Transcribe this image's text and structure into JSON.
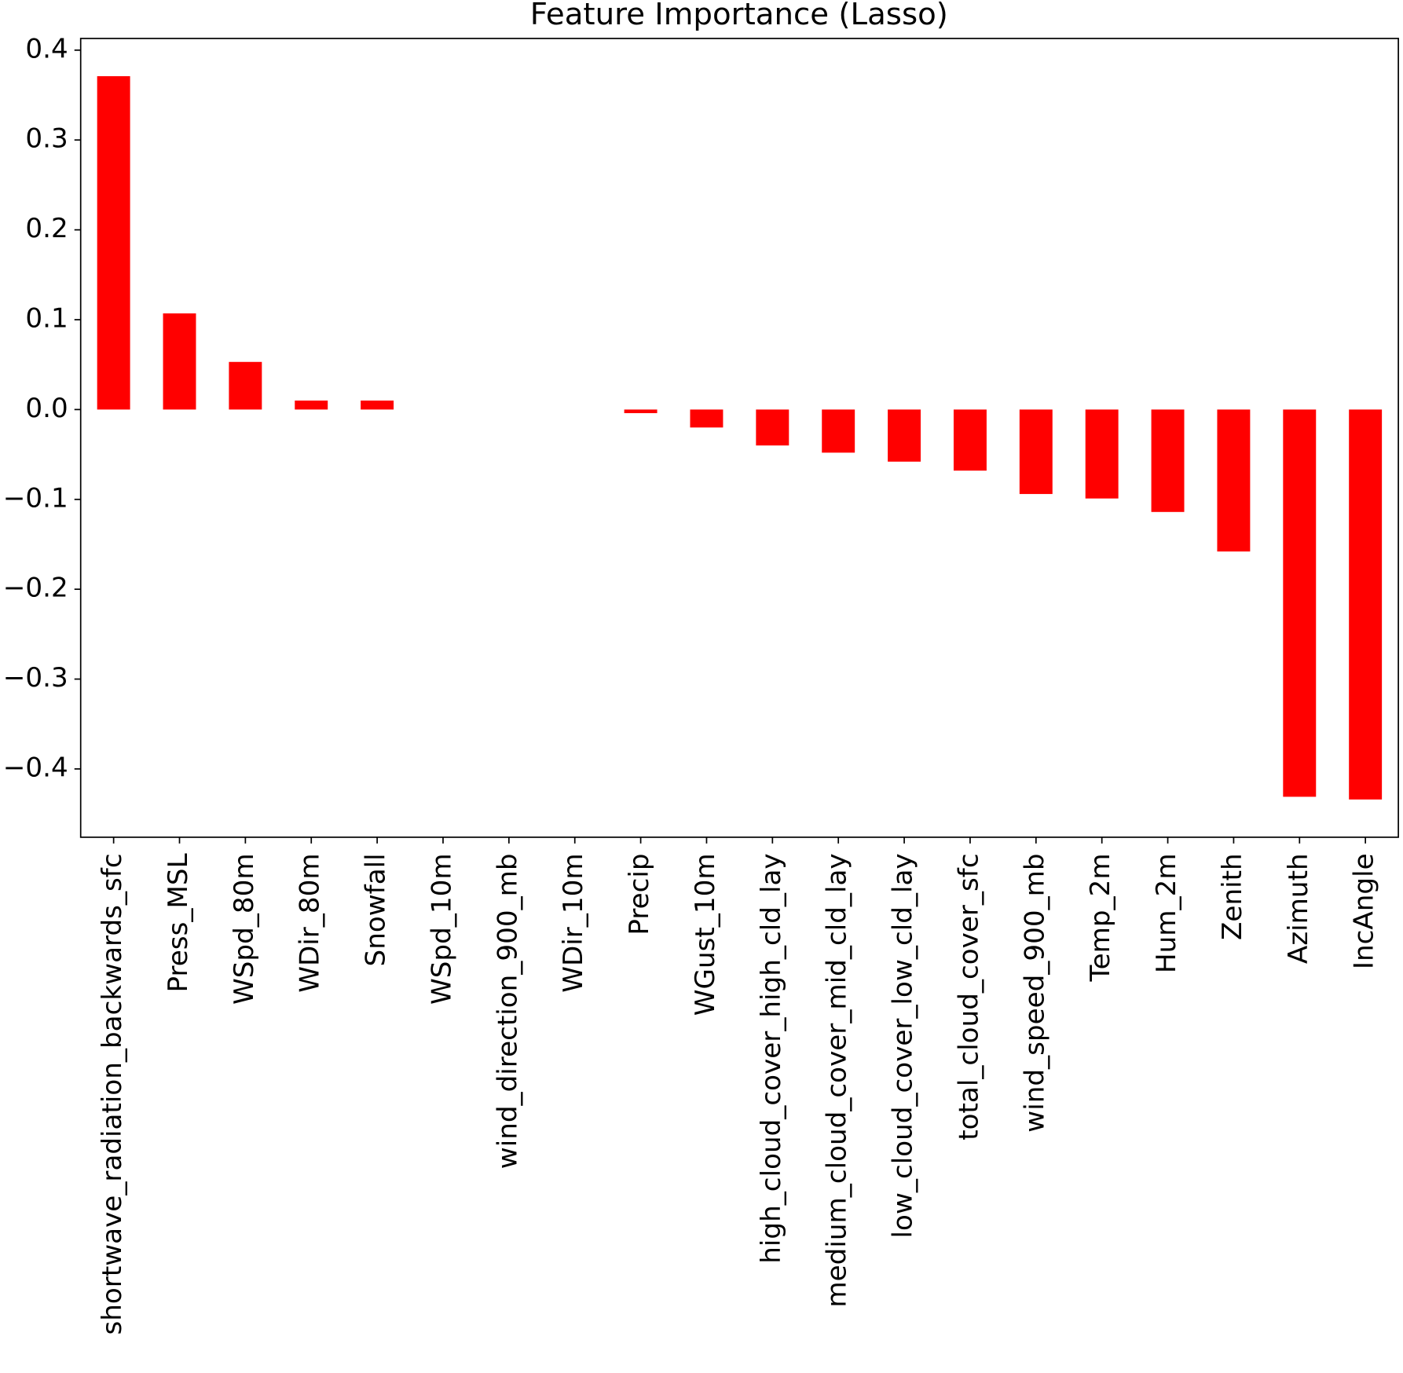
{
  "chart_data": {
    "type": "bar",
    "title": "Feature Importance (Lasso)",
    "categories": [
      "shortwave_radiation_backwards_sfc",
      "Press_MSL",
      "WSpd_80m",
      "WDir_80m",
      "Snowfall",
      "WSpd_10m",
      "wind_direction_900_mb",
      "WDir_10m",
      "Precip",
      "WGust_10m",
      "high_cloud_cover_high_cld_lay",
      "medium_cloud_cover_mid_cld_lay",
      "low_cloud_cover_low_cld_lay",
      "total_cloud_cover_sfc",
      "wind_speed_900_mb",
      "Temp_2m",
      "Hum_2m",
      "Zenith",
      "Azimuth",
      "IncAngle"
    ],
    "values": [
      0.371,
      0.107,
      0.053,
      0.01,
      0.01,
      0,
      0,
      0,
      -0.004,
      -0.02,
      -0.04,
      -0.048,
      -0.058,
      -0.068,
      -0.094,
      -0.099,
      -0.114,
      -0.158,
      -0.431,
      -0.434
    ],
    "color": "#ff0000",
    "ylim": [
      -0.476,
      0.413
    ],
    "yticks": [
      {
        "value": -0.4,
        "label": "−0.4"
      },
      {
        "value": -0.3,
        "label": "−0.3"
      },
      {
        "value": -0.2,
        "label": "−0.2"
      },
      {
        "value": -0.1,
        "label": "−0.1"
      },
      {
        "value": 0,
        "label": "0.0"
      },
      0.1,
      0.2,
      0.3,
      0.4
    ],
    "grid": false
  }
}
